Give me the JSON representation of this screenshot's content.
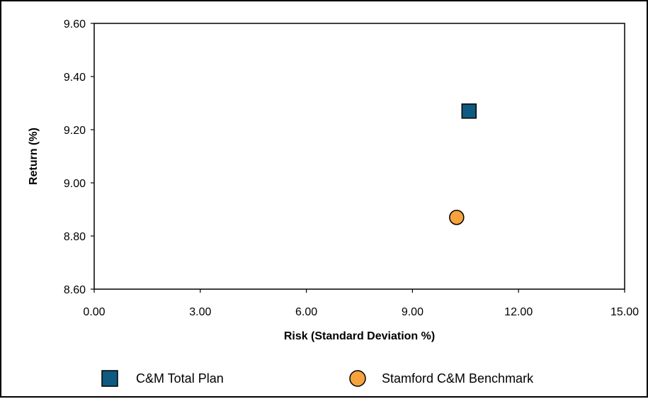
{
  "chart_data": {
    "type": "scatter",
    "title": "",
    "xlabel": "Risk (Standard Deviation %)",
    "ylabel": "Return (%)",
    "xlim": [
      0,
      15
    ],
    "ylim": [
      8.6,
      9.6
    ],
    "x_ticks": [
      "0.00",
      "3.00",
      "6.00",
      "9.00",
      "12.00",
      "15.00"
    ],
    "y_ticks": [
      "8.60",
      "8.80",
      "9.00",
      "9.20",
      "9.40",
      "9.60"
    ],
    "grid": false,
    "legend_position": "bottom",
    "series": [
      {
        "name": "C&M Total Plan",
        "marker": "square",
        "color": "#0f5a80",
        "x": [
          10.6
        ],
        "y": [
          9.27
        ]
      },
      {
        "name": "Stamford C&M Benchmark",
        "marker": "circle",
        "color": "#f7a23c",
        "x": [
          10.25
        ],
        "y": [
          8.87
        ]
      }
    ]
  }
}
